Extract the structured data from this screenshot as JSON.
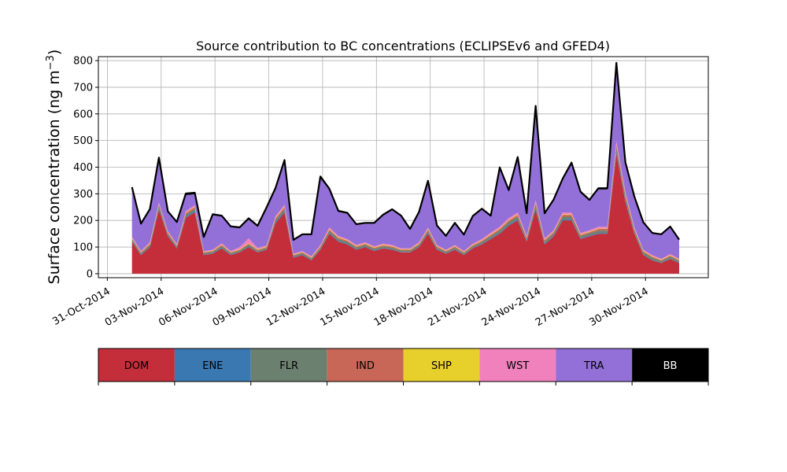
{
  "chart_data": {
    "type": "area",
    "title": "Source contribution to BC concentrations (ECLIPSEv6 and GFED4)",
    "ylabel": "Surface concentration (ng m",
    "ylabel_sup": "−3",
    "ylabel_close": ")",
    "xlabel": "",
    "stacked": true,
    "grid": true,
    "ylim": [
      -15,
      815
    ],
    "xlim": [
      "2014-10-30T12:00",
      "2014-12-03T12:00"
    ],
    "yticks": [
      0,
      100,
      200,
      300,
      400,
      500,
      600,
      700,
      800
    ],
    "xticks": [
      {
        "date": "2014-10-31",
        "label": "31-Oct-2014"
      },
      {
        "date": "2014-11-03",
        "label": "03-Nov-2014"
      },
      {
        "date": "2014-11-06",
        "label": "06-Nov-2014"
      },
      {
        "date": "2014-11-09",
        "label": "09-Nov-2014"
      },
      {
        "date": "2014-11-12",
        "label": "12-Nov-2014"
      },
      {
        "date": "2014-11-15",
        "label": "15-Nov-2014"
      },
      {
        "date": "2014-11-18",
        "label": "18-Nov-2014"
      },
      {
        "date": "2014-11-21",
        "label": "21-Nov-2014"
      },
      {
        "date": "2014-11-24",
        "label": "24-Nov-2014"
      },
      {
        "date": "2014-11-27",
        "label": "27-Nov-2014"
      },
      {
        "date": "2014-11-30",
        "label": "30-Nov-2014"
      }
    ],
    "x": [
      "2014-11-01T09:00",
      "2014-11-01T21:00",
      "2014-11-02T09:00",
      "2014-11-02T21:00",
      "2014-11-03T09:00",
      "2014-11-03T21:00",
      "2014-11-04T09:00",
      "2014-11-04T21:00",
      "2014-11-05T09:00",
      "2014-11-05T21:00",
      "2014-11-06T09:00",
      "2014-11-06T21:00",
      "2014-11-07T09:00",
      "2014-11-07T21:00",
      "2014-11-08T09:00",
      "2014-11-08T21:00",
      "2014-11-09T09:00",
      "2014-11-09T21:00",
      "2014-11-10T09:00",
      "2014-11-10T21:00",
      "2014-11-11T09:00",
      "2014-11-11T21:00",
      "2014-11-12T09:00",
      "2014-11-12T21:00",
      "2014-11-13T09:00",
      "2014-11-13T21:00",
      "2014-11-14T09:00",
      "2014-11-14T21:00",
      "2014-11-15T09:00",
      "2014-11-15T21:00",
      "2014-11-16T09:00",
      "2014-11-16T21:00",
      "2014-11-17T09:00",
      "2014-11-17T21:00",
      "2014-11-18T09:00",
      "2014-11-18T21:00",
      "2014-11-19T09:00",
      "2014-11-19T21:00",
      "2014-11-20T09:00",
      "2014-11-20T21:00",
      "2014-11-21T09:00",
      "2014-11-21T21:00",
      "2014-11-22T09:00",
      "2014-11-22T21:00",
      "2014-11-23T09:00",
      "2014-11-23T21:00",
      "2014-11-24T09:00",
      "2014-11-24T21:00",
      "2014-11-25T09:00",
      "2014-11-25T21:00",
      "2014-11-26T09:00",
      "2014-11-26T21:00",
      "2014-11-27T09:00",
      "2014-11-27T21:00",
      "2014-11-28T09:00",
      "2014-11-28T21:00",
      "2014-11-29T09:00",
      "2014-11-29T21:00",
      "2014-11-30T09:00",
      "2014-11-30T21:00",
      "2014-12-01T09:00",
      "2014-12-01T21:00"
    ],
    "series": [
      {
        "name": "DOM",
        "color": "#c42d3a",
        "values": [
          120,
          70,
          100,
          240,
          140,
          95,
          210,
          230,
          70,
          75,
          95,
          70,
          80,
          100,
          80,
          90,
          190,
          230,
          60,
          70,
          50,
          90,
          150,
          120,
          110,
          90,
          100,
          85,
          95,
          90,
          80,
          80,
          100,
          150,
          90,
          75,
          90,
          70,
          95,
          110,
          130,
          150,
          180,
          200,
          120,
          240,
          110,
          140,
          200,
          200,
          130,
          140,
          150,
          150,
          450,
          270,
          150,
          70,
          50,
          40,
          55,
          40
        ]
      },
      {
        "name": "ENE",
        "color": "#3a78b2",
        "values": [
          3,
          2,
          3,
          5,
          3,
          2,
          4,
          5,
          2,
          2,
          3,
          2,
          2,
          3,
          2,
          2,
          4,
          5,
          2,
          2,
          2,
          2,
          3,
          3,
          3,
          2,
          2,
          2,
          2,
          2,
          2,
          2,
          2,
          3,
          2,
          2,
          2,
          2,
          2,
          2,
          3,
          3,
          4,
          4,
          3,
          5,
          3,
          3,
          4,
          4,
          3,
          3,
          3,
          3,
          8,
          6,
          3,
          2,
          2,
          2,
          2,
          2
        ]
      },
      {
        "name": "FLR",
        "color": "#6c8070",
        "values": [
          6,
          5,
          6,
          8,
          6,
          5,
          8,
          8,
          5,
          5,
          6,
          5,
          5,
          6,
          5,
          5,
          8,
          8,
          5,
          5,
          5,
          6,
          8,
          7,
          7,
          6,
          6,
          6,
          6,
          6,
          5,
          5,
          6,
          8,
          6,
          5,
          6,
          5,
          6,
          7,
          8,
          9,
          10,
          10,
          8,
          12,
          8,
          8,
          10,
          10,
          8,
          8,
          9,
          9,
          15,
          12,
          9,
          8,
          8,
          6,
          7,
          6
        ]
      },
      {
        "name": "IND",
        "color": "#c86757",
        "values": [
          4,
          3,
          4,
          7,
          5,
          4,
          6,
          7,
          3,
          3,
          4,
          3,
          3,
          4,
          3,
          3,
          6,
          7,
          3,
          3,
          3,
          4,
          5,
          5,
          4,
          4,
          4,
          4,
          4,
          4,
          3,
          3,
          4,
          5,
          4,
          3,
          4,
          3,
          4,
          4,
          5,
          6,
          6,
          7,
          5,
          8,
          5,
          5,
          7,
          7,
          5,
          5,
          6,
          6,
          12,
          9,
          6,
          4,
          4,
          3,
          4,
          3
        ]
      },
      {
        "name": "SHP",
        "color": "#e7cf2c",
        "values": [
          2,
          2,
          2,
          2,
          2,
          2,
          2,
          2,
          2,
          2,
          2,
          2,
          2,
          2,
          2,
          2,
          2,
          2,
          2,
          2,
          2,
          2,
          2,
          2,
          2,
          2,
          2,
          2,
          2,
          2,
          2,
          2,
          2,
          2,
          2,
          2,
          2,
          2,
          2,
          2,
          2,
          2,
          2,
          2,
          2,
          2,
          2,
          2,
          2,
          2,
          2,
          2,
          2,
          2,
          3,
          3,
          2,
          2,
          2,
          2,
          2,
          2
        ]
      },
      {
        "name": "WST",
        "color": "#f081bd",
        "values": [
          4,
          3,
          4,
          6,
          4,
          3,
          5,
          6,
          3,
          3,
          4,
          3,
          8,
          18,
          5,
          4,
          6,
          7,
          3,
          3,
          3,
          4,
          6,
          5,
          4,
          4,
          4,
          4,
          4,
          4,
          3,
          3,
          4,
          5,
          4,
          3,
          4,
          3,
          4,
          5,
          6,
          6,
          7,
          7,
          5,
          8,
          5,
          5,
          7,
          7,
          5,
          5,
          6,
          6,
          10,
          8,
          6,
          4,
          4,
          3,
          4,
          3
        ]
      },
      {
        "name": "TRA",
        "color": "#9370d8",
        "values": [
          181,
          100,
          120,
          160,
          70,
          80,
          60,
          40,
          50,
          130,
          100,
          90,
          70,
          70,
          80,
          140,
          100,
          160,
          50,
          60,
          80,
          250,
          140,
          90,
          95,
          75,
          70,
          85,
          105,
          130,
          120,
          70,
          110,
          170,
          70,
          50,
          80,
          60,
          100,
          110,
          60,
          215,
          100,
          200,
          80,
          345,
          90,
          110,
          120,
          180,
          150,
          110,
          140,
          140,
          280,
          105,
          110,
          100,
          80,
          90,
          100,
          70
        ]
      },
      {
        "name": "BB",
        "color": "#000000",
        "values": [
          5,
          3,
          4,
          8,
          4,
          3,
          6,
          6,
          3,
          3,
          4,
          3,
          4,
          5,
          3,
          3,
          6,
          8,
          2,
          3,
          3,
          7,
          5,
          4,
          4,
          3,
          3,
          3,
          4,
          4,
          3,
          3,
          4,
          6,
          3,
          2,
          3,
          2,
          4,
          4,
          4,
          8,
          5,
          8,
          4,
          10,
          4,
          5,
          6,
          7,
          5,
          4,
          5,
          5,
          14,
          6,
          4,
          3,
          3,
          2,
          3,
          2
        ]
      }
    ]
  }
}
